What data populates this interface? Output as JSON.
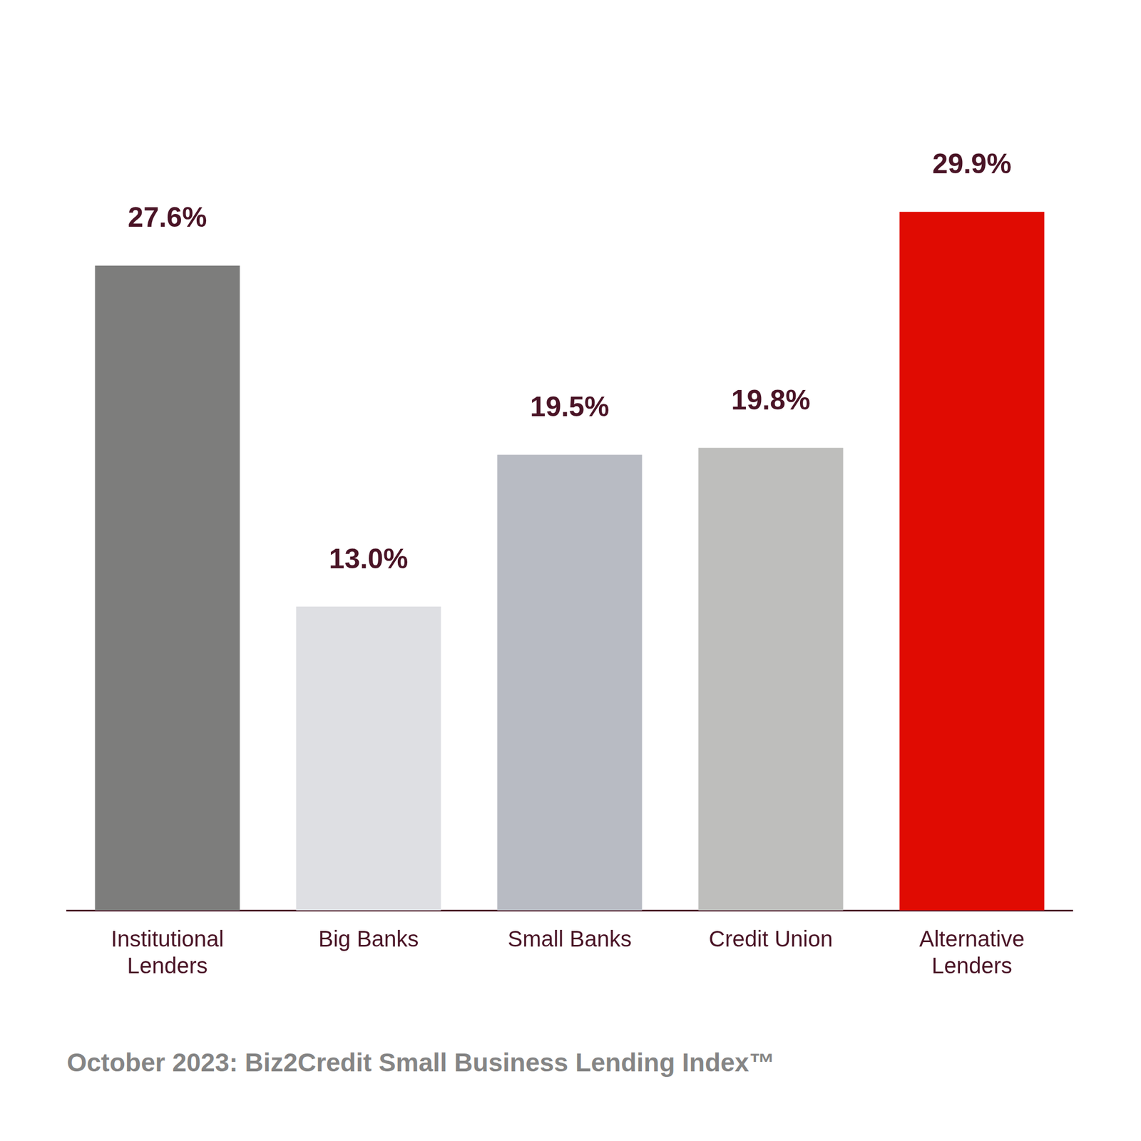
{
  "chart_data": {
    "type": "bar",
    "caption": "October 2023: Biz2Credit Small Business Lending Index™",
    "categories": [
      "Institutional\nLenders",
      "Big Banks",
      "Small Banks",
      "Credit Union",
      "Alternative\nLenders"
    ],
    "values": [
      27.6,
      13.0,
      19.5,
      19.8,
      29.9
    ],
    "value_labels": [
      "27.6%",
      "13.0%",
      "19.5%",
      "19.8%",
      "29.9%"
    ],
    "colors": [
      "#7d7d7c",
      "#dedfe3",
      "#b8bbc3",
      "#bebebc",
      "#e00b02"
    ],
    "ylim": [
      0,
      30
    ],
    "grid": false,
    "tick_labels": "x",
    "data_labels": true
  }
}
